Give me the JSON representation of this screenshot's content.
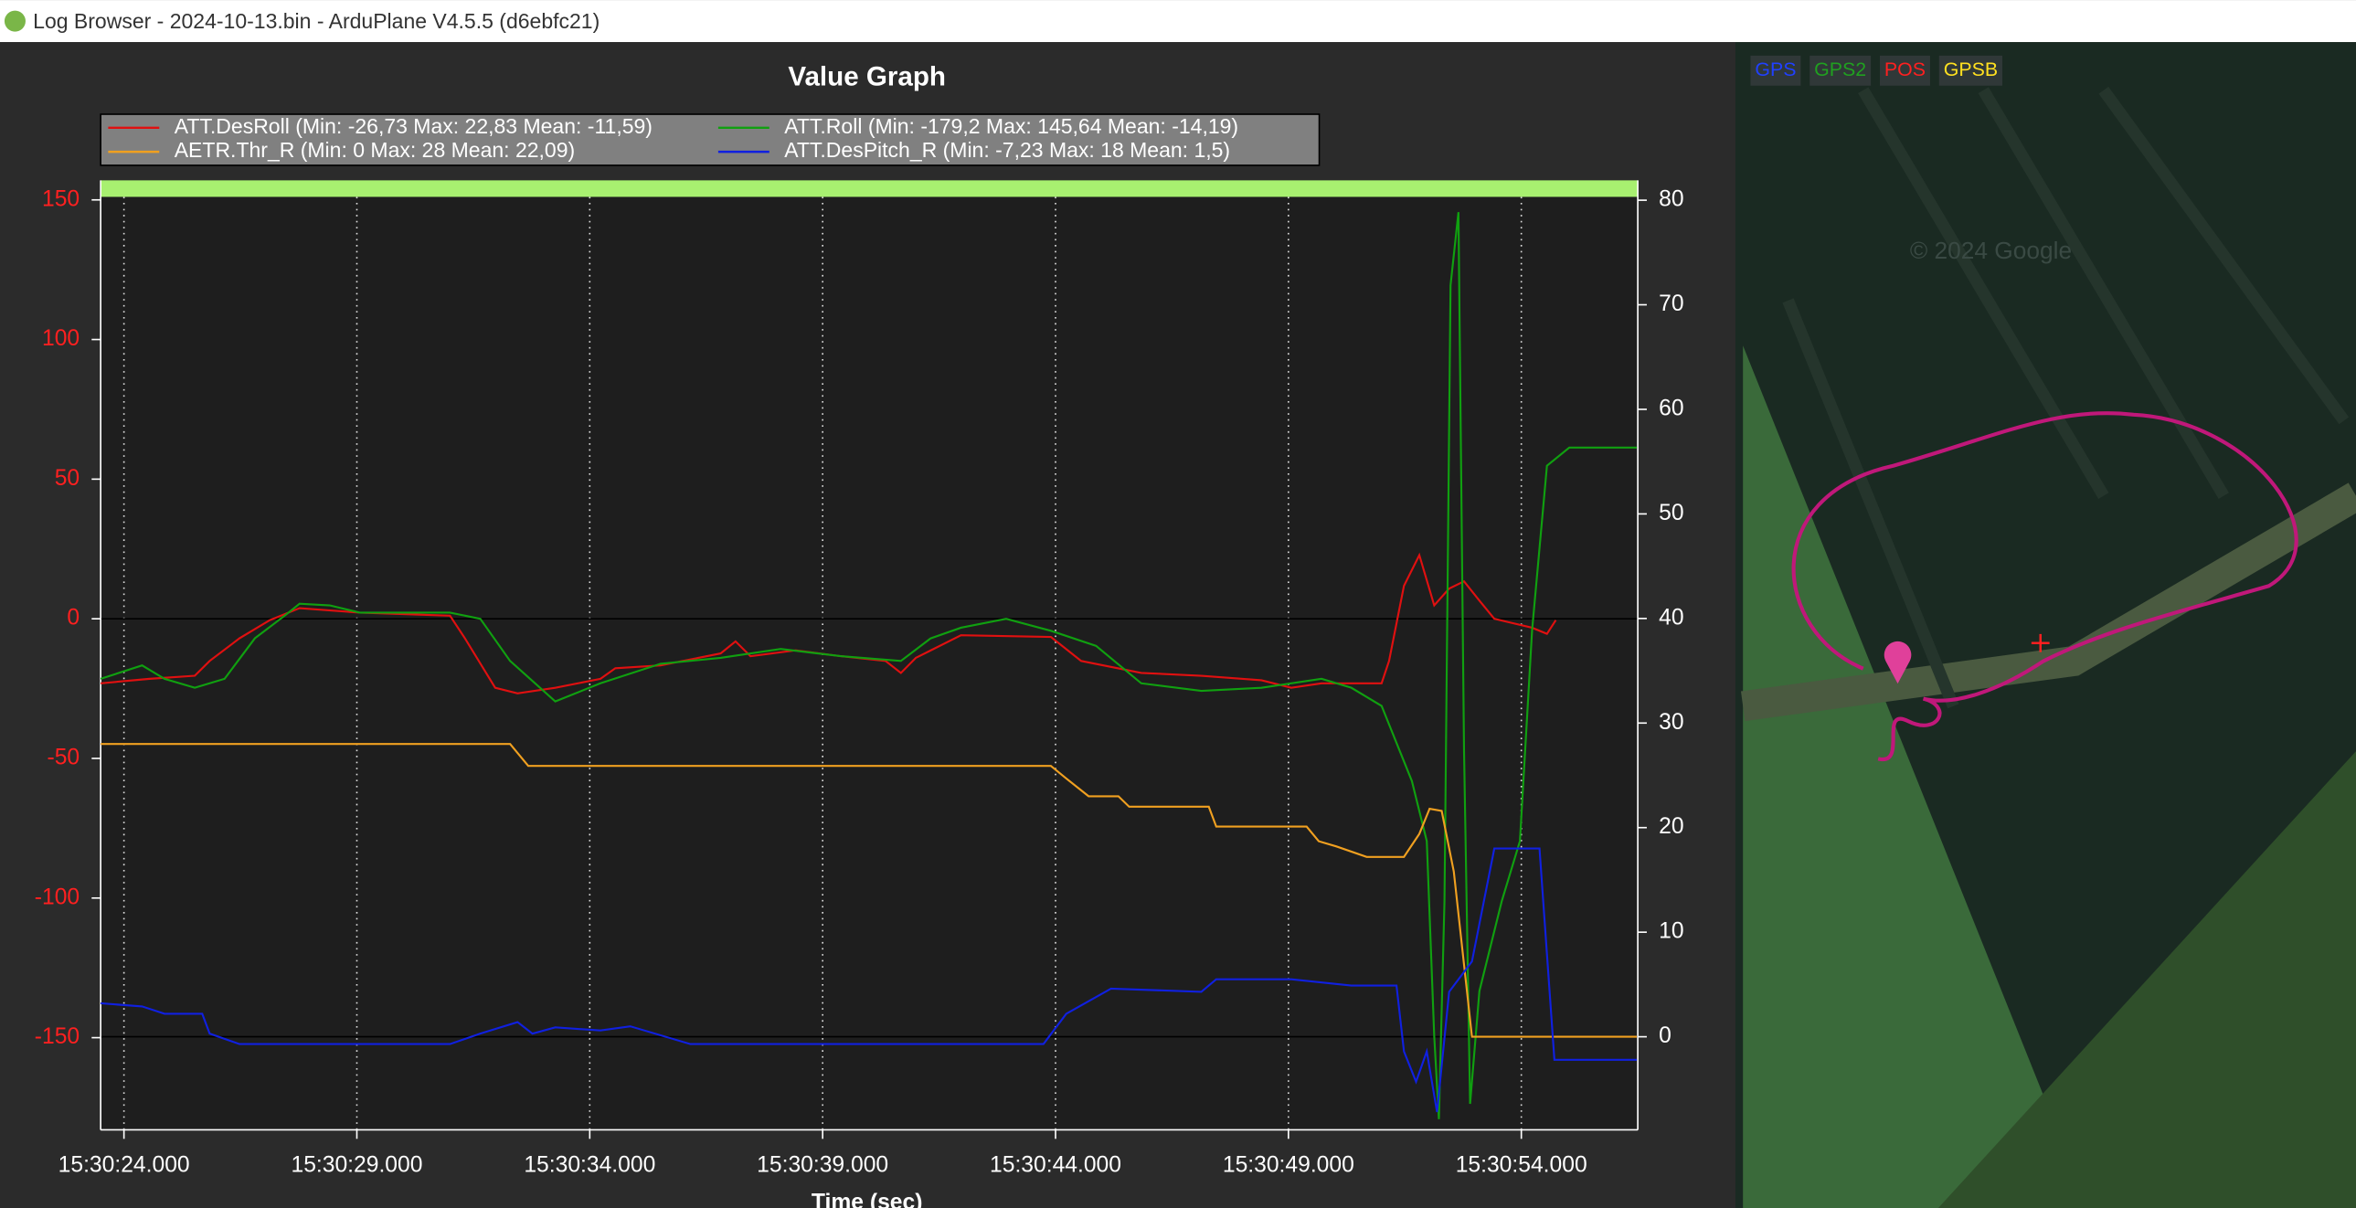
{
  "window": {
    "title": "Log Browser - 2024-10-13.bin - ArduPlane V4.5.5 (d6ebfc21)"
  },
  "chart_data": {
    "type": "line",
    "title": "Value Graph",
    "xlabel": "Time (sec)",
    "xlim": [
      23.5,
      56.5
    ],
    "xticks": [
      {
        "value": 24,
        "label": "15:30:24.000"
      },
      {
        "value": 29,
        "label": "15:30:29.000"
      },
      {
        "value": 34,
        "label": "15:30:34.000"
      },
      {
        "value": 39,
        "label": "15:30:39.000"
      },
      {
        "value": 44,
        "label": "15:30:44.000"
      },
      {
        "value": 49,
        "label": "15:30:49.000"
      },
      {
        "value": 54,
        "label": "15:30:54.000"
      }
    ],
    "ylim": [
      -183,
      157
    ],
    "yticks": [
      -150,
      -100,
      -50,
      0,
      50,
      100,
      150
    ],
    "y2lim": [
      -8.9,
      81.9
    ],
    "y2ticks": [
      0,
      10,
      20,
      30,
      40,
      50,
      60,
      70,
      80
    ],
    "grid": true,
    "series": [
      {
        "name": "ATT.DesRoll  (Min: -26,73 Max: 22,83 Mean: -11,59)",
        "color": "#e01010",
        "axis": "y",
        "x": [
          23.5,
          24.55,
          25.52,
          25.84,
          26.48,
          27.13,
          27.77,
          29.06,
          31.0,
          31.32,
          31.97,
          32.45,
          33.26,
          34.23,
          34.55,
          35.52,
          36.81,
          37.13,
          37.45,
          38.42,
          39.39,
          40.35,
          40.68,
          41.0,
          41.97,
          43.9,
          44.55,
          45.84,
          47.13,
          48.42,
          49.06,
          49.71,
          51.0,
          51.16,
          51.48,
          51.81,
          52.13,
          52.45,
          52.77,
          53.1,
          53.42,
          54.23,
          54.55,
          54.74
        ],
        "values": [
          -23.1,
          -21.5,
          -20.4,
          -15.1,
          -7.0,
          -0.5,
          3.8,
          2.2,
          1.1,
          -7.0,
          -24.7,
          -26.7,
          -24.7,
          -21.5,
          -17.7,
          -16.7,
          -12.4,
          -8.1,
          -13.4,
          -11.3,
          -13.4,
          -15.1,
          -19.4,
          -14.0,
          -5.9,
          -6.5,
          -15.1,
          -19.4,
          -20.4,
          -22.0,
          -24.7,
          -23.1,
          -23.1,
          -15.1,
          11.8,
          22.8,
          4.8,
          10.8,
          13.4,
          6.5,
          0,
          -3.2,
          -5.4,
          -0.5
        ]
      },
      {
        "name": "ATT.Roll  (Min: -179,2 Max: 145,64 Mean: -14,19)",
        "color": "#10a010",
        "axis": "y",
        "x": [
          23.5,
          24.39,
          24.87,
          25.52,
          26.16,
          26.81,
          27.45,
          27.77,
          28.42,
          29.06,
          31.0,
          31.65,
          32.29,
          33.26,
          34.23,
          35.52,
          36.81,
          38.1,
          39.39,
          40.68,
          41.32,
          41.97,
          42.94,
          43.9,
          44.87,
          45.84,
          47.13,
          48.42,
          49.71,
          50.35,
          51.0,
          51.65,
          51.97,
          52.13,
          52.23,
          52.35,
          52.48,
          52.65,
          52.77,
          52.9,
          53.1,
          53.58,
          53.97,
          54.23,
          54.55,
          55.03,
          56.48
        ],
        "values": [
          -21.5,
          -16.7,
          -21.5,
          -24.7,
          -21.5,
          -7.0,
          1.1,
          5.4,
          4.8,
          2.2,
          2.2,
          0,
          -15.1,
          -29.6,
          -23.1,
          -16.1,
          -14.0,
          -10.8,
          -13.4,
          -15.1,
          -7.0,
          -3.2,
          0,
          -4.3,
          -9.7,
          -23.1,
          -25.8,
          -24.7,
          -21.5,
          -24.7,
          -31.2,
          -58.1,
          -79.6,
          -149.5,
          -179.2,
          -101.1,
          119.4,
          145.6,
          -47.3,
          -173.7,
          -133.3,
          -101.1,
          -79.6,
          -4.3,
          54.8,
          61.3,
          61.3
        ]
      },
      {
        "name": "AETR.Thr_R (Min: 0 Max: 28 Mean: 22,09)",
        "color": "#f0a020",
        "axis": "y2",
        "x": [
          23.5,
          32.29,
          32.68,
          43.9,
          44.23,
          44.71,
          45.35,
          45.58,
          47.29,
          47.45,
          49.39,
          49.65,
          50.03,
          50.68,
          51.48,
          51.81,
          52.03,
          52.29,
          52.55,
          52.94,
          56.48
        ],
        "values": [
          28,
          28,
          25.9,
          25.9,
          24.7,
          23.0,
          23.0,
          22.0,
          22.0,
          20.1,
          20.1,
          18.7,
          18.2,
          17.2,
          17.2,
          19.4,
          21.8,
          21.6,
          15.8,
          0,
          0
        ]
      },
      {
        "name": "ATT.DesPitch_R (Min: -7,23 Max: 18 Mean: 1,5)",
        "color": "#1020e0",
        "axis": "y2",
        "x": [
          23.5,
          24.39,
          24.87,
          25.68,
          25.84,
          26.48,
          31.0,
          31.65,
          32.45,
          32.77,
          33.26,
          34.23,
          34.87,
          36.16,
          43.74,
          44.23,
          45.19,
          47.13,
          47.45,
          49.06,
          50.35,
          51.32,
          51.48,
          51.74,
          51.97,
          52.19,
          52.45,
          52.94,
          53.42,
          54.39,
          54.71,
          56.48
        ],
        "values": [
          3.2,
          2.9,
          2.2,
          2.2,
          0.3,
          -0.7,
          -0.7,
          0.3,
          1.4,
          0.3,
          0.9,
          0.6,
          1.0,
          -0.7,
          -0.7,
          2.2,
          4.6,
          4.3,
          5.5,
          5.5,
          4.9,
          4.9,
          -1.4,
          -4.3,
          -1.4,
          -7.2,
          4.3,
          7.2,
          18.0,
          18.0,
          -2.2,
          -2.2
        ]
      }
    ]
  },
  "map": {
    "layers": [
      "GPS",
      "GPS2",
      "POS",
      "GPSB"
    ],
    "layer_colors": [
      "#2040ff",
      "#20a020",
      "#ff2020",
      "#ffe020"
    ],
    "watermark": "© 2024 Google"
  }
}
